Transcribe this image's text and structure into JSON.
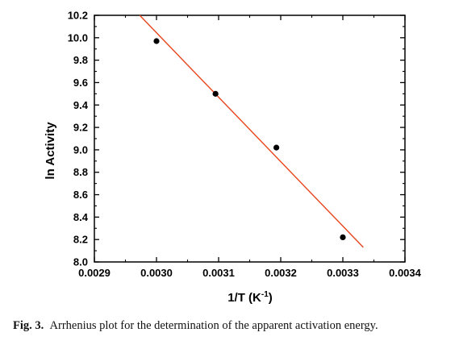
{
  "chart_data": {
    "type": "scatter",
    "xlabel_main": "1/T (K",
    "xlabel_sup": "-1",
    "xlabel_end": ")",
    "ylabel": "ln Activity",
    "xlim": [
      0.0029,
      0.0034
    ],
    "ylim": [
      8.0,
      10.2
    ],
    "xticks": [
      "0.0029",
      "0.0030",
      "0.0031",
      "0.0032",
      "0.0033",
      "0.0034"
    ],
    "yticks": [
      "8.0",
      "8.2",
      "8.4",
      "8.6",
      "8.8",
      "9.0",
      "9.2",
      "9.4",
      "9.6",
      "9.8",
      "10.0",
      "10.2"
    ],
    "grid": false,
    "points": [
      {
        "x": 0.003,
        "y": 9.97
      },
      {
        "x": 0.003095,
        "y": 9.5
      },
      {
        "x": 0.003193,
        "y": 9.02
      },
      {
        "x": 0.0033,
        "y": 8.22
      }
    ],
    "fit_line": {
      "x": [
        0.002973,
        0.003333
      ],
      "y": [
        10.2,
        8.13
      ]
    },
    "marker_color": "#000000",
    "line_color": "#e8441a"
  },
  "caption": {
    "prefix": "Fig. 3.",
    "text": "Arrhenius plot for the determination of the apparent activation energy."
  }
}
